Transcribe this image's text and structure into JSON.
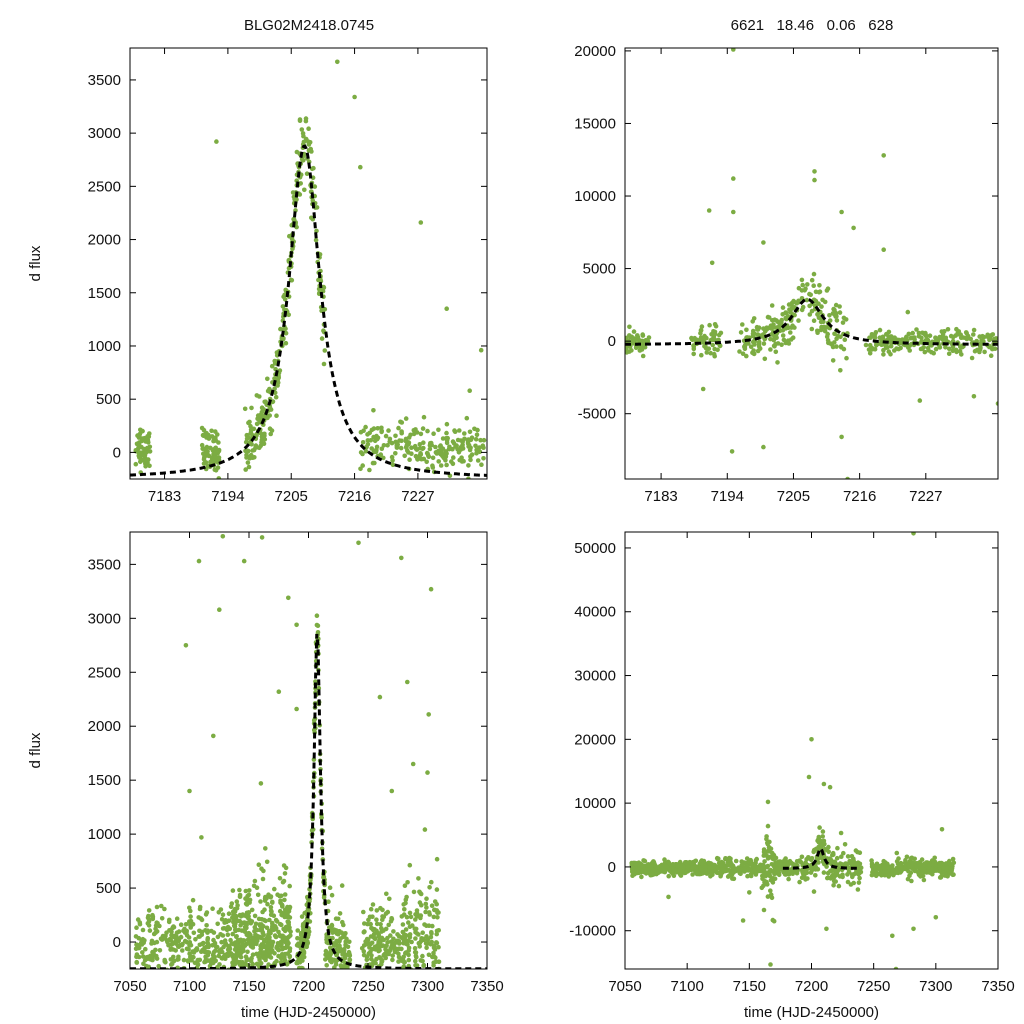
{
  "header": {
    "star_id": "BLG02M2418.0745",
    "stats": "6621   18.46   0.06   628"
  },
  "colors": {
    "points": "#7cac43",
    "model": "#000000",
    "frame": "#000000"
  },
  "chart_data": [
    {
      "id": "top-left",
      "type": "scatter",
      "title": "",
      "xlabel": "",
      "ylabel": "d flux",
      "xlim": [
        7177,
        7239
      ],
      "ylim": [
        -250,
        3800
      ],
      "xticks": [
        7183,
        7194,
        7205,
        7216,
        7227
      ],
      "yticks": [
        0,
        500,
        1000,
        1500,
        2000,
        2500,
        3000,
        3500
      ],
      "model": {
        "t0": 7207.3,
        "peak": 2880,
        "width": 3.3,
        "baseline": -250
      },
      "series": [
        {
          "name": "observations",
          "segments": [
            {
              "x0": 7178,
              "x1": 7180.5,
              "center": 50,
              "spread": 220,
              "n": 60
            },
            {
              "x0": 7189.5,
              "x1": 7192.5,
              "center": 0,
              "spread": 240,
              "n": 70
            },
            {
              "x0": 7197,
              "x1": 7206,
              "center": "model",
              "spread": 300,
              "n": 200
            },
            {
              "x0": 7205.5,
              "x1": 7211,
              "center": "model",
              "spread": 380,
              "n": 110
            },
            {
              "x0": 7217,
              "x1": 7238.5,
              "center": 50,
              "spread": 250,
              "n": 230
            }
          ],
          "outliers": [
            [
              7192,
              2920
            ],
            [
              7213,
              3670
            ],
            [
              7216,
              3340
            ],
            [
              7217,
              2680
            ],
            [
              7227.5,
              2160
            ],
            [
              7232,
              1350
            ],
            [
              7238,
              960
            ],
            [
              7236,
              580
            ]
          ]
        }
      ]
    },
    {
      "id": "top-right",
      "type": "scatter",
      "title": "",
      "xlabel": "",
      "ylabel": "",
      "xlim": [
        7177,
        7239
      ],
      "ylim": [
        -9500,
        20200
      ],
      "xticks": [
        7183,
        7194,
        7205,
        7216,
        7227
      ],
      "yticks": [
        -5000,
        0,
        5000,
        10000,
        15000,
        20000
      ],
      "model": {
        "t0": 7207.3,
        "peak": 2880,
        "width": 3.3,
        "baseline": -250
      },
      "series": [
        {
          "name": "observations",
          "segments": [
            {
              "x0": 7177,
              "x1": 7181,
              "center": -150,
              "spread": 800,
              "n": 60
            },
            {
              "x0": 7188,
              "x1": 7193,
              "center": 0,
              "spread": 1100,
              "n": 60
            },
            {
              "x0": 7196,
              "x1": 7205,
              "center": "model",
              "spread": 1700,
              "n": 140
            },
            {
              "x0": 7205,
              "x1": 7214,
              "center": "model",
              "spread": 2200,
              "n": 110
            },
            {
              "x0": 7217,
              "x1": 7239,
              "center": -100,
              "spread": 900,
              "n": 220
            }
          ],
          "outliers": [
            [
              7190,
              -3300
            ],
            [
              7191,
              9000
            ],
            [
              7191.5,
              5400
            ],
            [
              7195,
              20100
            ],
            [
              7195,
              11200
            ],
            [
              7195,
              8900
            ],
            [
              7194.8,
              -7600
            ],
            [
              7200,
              -7300
            ],
            [
              7200,
              6800
            ],
            [
              7208.5,
              11700
            ],
            [
              7208.5,
              11100
            ],
            [
              7213,
              8900
            ],
            [
              7213,
              -6600
            ],
            [
              7214,
              -9500
            ],
            [
              7220,
              12800
            ],
            [
              7220,
              6300
            ],
            [
              7215,
              7800
            ],
            [
              7224,
              2000
            ],
            [
              7226,
              -4100
            ],
            [
              7235,
              -3800
            ],
            [
              7239,
              -4300
            ]
          ]
        }
      ]
    },
    {
      "id": "bottom-left",
      "type": "scatter",
      "title": "",
      "xlabel": "time (HJD-2450000)",
      "ylabel": "d flux",
      "xlim": [
        7050,
        7350
      ],
      "ylim": [
        -250,
        3800
      ],
      "xticks": [
        7050,
        7100,
        7150,
        7200,
        7250,
        7300,
        7350
      ],
      "yticks": [
        0,
        500,
        1000,
        1500,
        2000,
        2500,
        3000,
        3500
      ],
      "model": {
        "t0": 7207.3,
        "peak": 2880,
        "width": 3.3,
        "baseline": -250
      },
      "series": [
        {
          "name": "observations",
          "segments": [
            {
              "x0": 7055,
              "x1": 7100,
              "center": -50,
              "spread": 380,
              "n": 180
            },
            {
              "x0": 7100,
              "x1": 7135,
              "center": -50,
              "spread": 420,
              "n": 170
            },
            {
              "x0": 7135,
              "x1": 7185,
              "center": -50,
              "spread": 650,
              "n": 500
            },
            {
              "x0": 7190,
              "x1": 7214,
              "center": "model",
              "spread": 300,
              "n": 220
            },
            {
              "x0": 7214,
              "x1": 7235,
              "center": -50,
              "spread": 450,
              "n": 150
            },
            {
              "x0": 7245,
              "x1": 7280,
              "center": -50,
              "spread": 420,
              "n": 180
            },
            {
              "x0": 7280,
              "x1": 7310,
              "center": 0,
              "spread": 650,
              "n": 170
            }
          ],
          "outliers": [
            [
              7097,
              2750
            ],
            [
              7108,
              3530
            ],
            [
              7128,
              3760
            ],
            [
              7125,
              3080
            ],
            [
              7146,
              3530
            ],
            [
              7161,
              3750
            ],
            [
              7183,
              3190
            ],
            [
              7242,
              3700
            ],
            [
              7278,
              3560
            ],
            [
              7303,
              3270
            ],
            [
              7260,
              2270
            ],
            [
              7283,
              2410
            ],
            [
              7301,
              2110
            ],
            [
              7288,
              1650
            ],
            [
              7300,
              1570
            ],
            [
              7270,
              1400
            ],
            [
              7120,
              1910
            ],
            [
              7100,
              1400
            ],
            [
              7175,
              2320
            ],
            [
              7190,
              2160
            ],
            [
              7190,
              2940
            ],
            [
              7160,
              1470
            ],
            [
              7110,
              970
            ]
          ]
        }
      ]
    },
    {
      "id": "bottom-right",
      "type": "scatter",
      "title": "",
      "xlabel": "time (HJD-2450000)",
      "ylabel": "",
      "xlim": [
        7050,
        7350
      ],
      "ylim": [
        -16000,
        52500
      ],
      "xticks": [
        7050,
        7100,
        7150,
        7200,
        7250,
        7300,
        7350
      ],
      "yticks": [
        -10000,
        0,
        10000,
        20000,
        30000,
        40000,
        50000
      ],
      "model": {
        "t0": 7207.3,
        "peak": 2880,
        "width": 3.3,
        "baseline": -250,
        "range": [
          7177,
          7239
        ]
      },
      "series": [
        {
          "name": "observations",
          "segments": [
            {
              "x0": 7055,
              "x1": 7100,
              "center": -200,
              "spread": 1200,
              "n": 220
            },
            {
              "x0": 7100,
              "x1": 7160,
              "center": -200,
              "spread": 1500,
              "n": 240
            },
            {
              "x0": 7160,
              "x1": 7170,
              "center": 0,
              "spread": 6000,
              "n": 60
            },
            {
              "x0": 7170,
              "x1": 7195,
              "center": -200,
              "spread": 1600,
              "n": 100
            },
            {
              "x0": 7195,
              "x1": 7240,
              "center": "model",
              "spread": 3200,
              "n": 200
            },
            {
              "x0": 7248,
              "x1": 7315,
              "center": -200,
              "spread": 1600,
              "n": 280
            }
          ],
          "outliers": [
            [
              7200,
              20000
            ],
            [
              7210,
              13000
            ],
            [
              7215,
              12500
            ],
            [
              7165,
              10200
            ],
            [
              7165,
              6400
            ],
            [
              7167,
              -15300
            ],
            [
              7198,
              14100
            ],
            [
              7212,
              -9700
            ],
            [
              7265,
              -10800
            ],
            [
              7268,
              -16000
            ],
            [
              7282,
              52300
            ],
            [
              7282,
              -9700
            ],
            [
              7305,
              5900
            ],
            [
              7300,
              -7900
            ],
            [
              7145,
              -8400
            ],
            [
              7085,
              -4700
            ],
            [
              7150,
              -4000
            ],
            [
              7170,
              -8500
            ]
          ]
        }
      ]
    }
  ]
}
